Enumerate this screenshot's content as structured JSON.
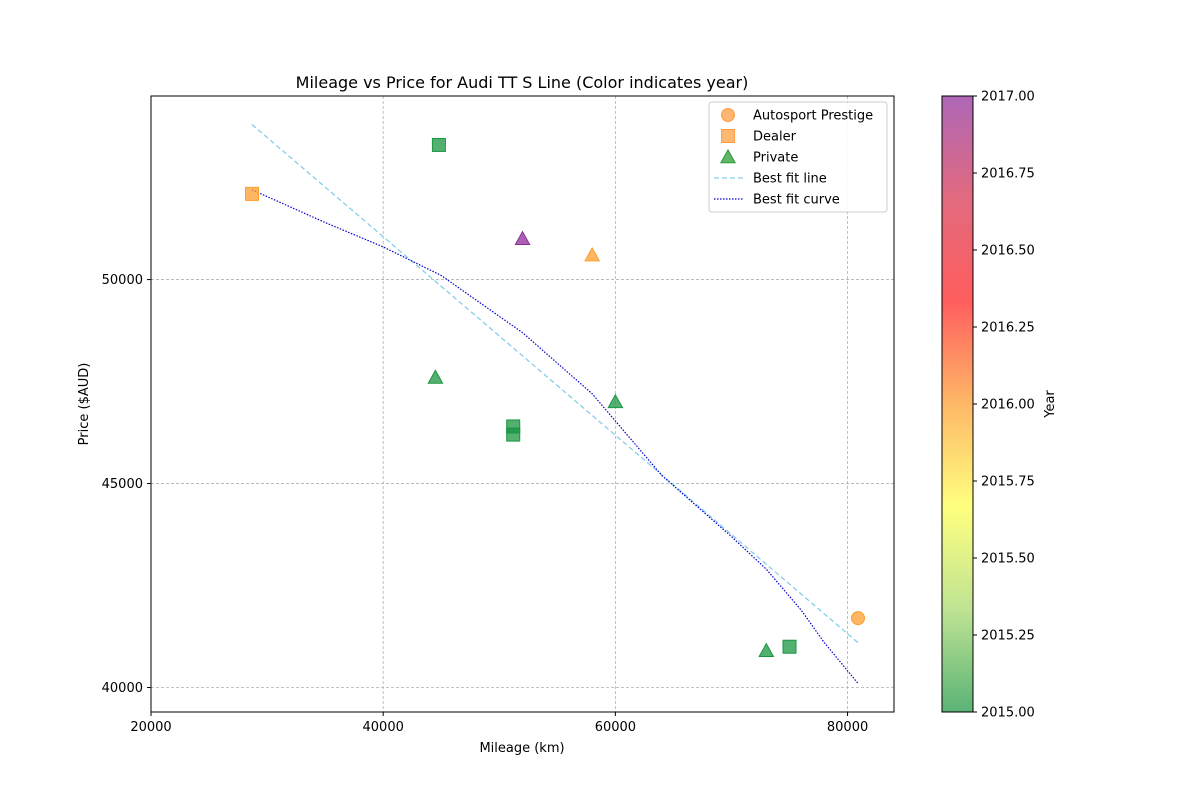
{
  "chart_data": {
    "type": "scatter",
    "title": "Mileage vs Price for Audi TT S Line  (Color indicates year)",
    "xlabel": "Mileage (km)",
    "ylabel": "Price ($AUD)",
    "xlim": [
      20000,
      84000
    ],
    "ylim": [
      39400,
      54500
    ],
    "x_ticks": [
      20000,
      40000,
      60000,
      80000
    ],
    "y_ticks": [
      40000,
      45000,
      50000
    ],
    "grid": true,
    "legend_position": "top-right",
    "colorbar": {
      "label": "Year",
      "range": [
        2015.0,
        2017.0
      ],
      "ticks": [
        "2015.00",
        "2015.25",
        "2015.50",
        "2015.75",
        "2016.00",
        "2016.25",
        "2016.50",
        "2016.75",
        "2017.00"
      ],
      "colormap": [
        "#1a9641",
        "#a6d96a",
        "#ffff4d",
        "#fd9d2d",
        "#ff1f1f",
        "#d7304d",
        "#8e2c9b"
      ]
    },
    "legend": [
      {
        "label": "Autosport Prestige",
        "marker": "circle",
        "color": "#fd9d44"
      },
      {
        "label": "Dealer",
        "marker": "square",
        "color": "#fd9d44"
      },
      {
        "label": "Private",
        "marker": "triangle",
        "color": "#2e9b37"
      },
      {
        "label": "Best fit line",
        "line": "dashed",
        "color": "#87ceeb"
      },
      {
        "label": "Best fit curve",
        "line": "dotted",
        "color": "#0000cd"
      }
    ],
    "points": [
      {
        "series": "Autosport Prestige",
        "marker": "circle",
        "x": 80900,
        "y": 41700,
        "year": 2016
      },
      {
        "series": "Dealer",
        "marker": "square",
        "x": 28700,
        "y": 52100,
        "year": 2016
      },
      {
        "series": "Dealer",
        "marker": "square",
        "x": 44800,
        "y": 53300,
        "year": 2015
      },
      {
        "series": "Dealer",
        "marker": "square",
        "x": 51200,
        "y": 46400,
        "year": 2015
      },
      {
        "series": "Dealer",
        "marker": "square",
        "x": 51200,
        "y": 46200,
        "year": 2015
      },
      {
        "series": "Dealer",
        "marker": "square",
        "x": 75000,
        "y": 41000,
        "year": 2015
      },
      {
        "series": "Private",
        "marker": "triangle",
        "x": 52000,
        "y": 51000,
        "year": 2017
      },
      {
        "series": "Private",
        "marker": "triangle",
        "x": 58000,
        "y": 50600,
        "year": 2016
      },
      {
        "series": "Private",
        "marker": "triangle",
        "x": 44500,
        "y": 47600,
        "year": 2015
      },
      {
        "series": "Private",
        "marker": "triangle",
        "x": 60000,
        "y": 47000,
        "year": 2015
      },
      {
        "series": "Private",
        "marker": "triangle",
        "x": 73000,
        "y": 40900,
        "year": 2015
      }
    ],
    "fit_line": {
      "x": [
        28700,
        80900
      ],
      "y": [
        53800,
        41100
      ]
    },
    "fit_curve": {
      "x": [
        28700,
        35000,
        40000,
        45000,
        52000,
        58000,
        64000,
        70000,
        73000,
        76000,
        78000,
        80900
      ],
      "y": [
        52200,
        51400,
        50800,
        50100,
        48700,
        47200,
        45200,
        43700,
        42900,
        41900,
        41100,
        40100
      ]
    }
  }
}
